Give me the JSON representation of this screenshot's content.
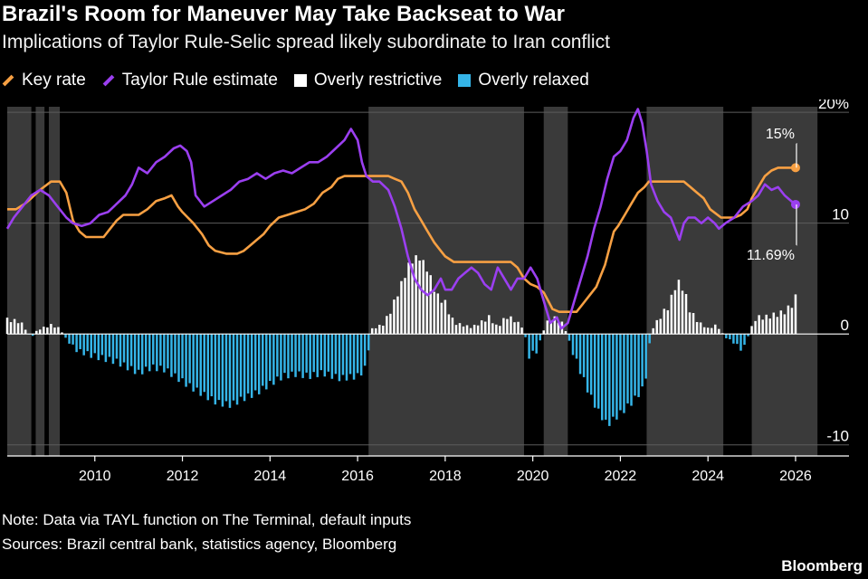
{
  "header": {
    "title": "Brazil's Room for Maneuver May Take Backseat to War",
    "subtitle": "Implications of Taylor Rule-Selic spread likely subordinate to Iran conflict"
  },
  "legend": [
    {
      "label": "Key rate",
      "color": "#f7a043",
      "kind": "line"
    },
    {
      "label": "Taylor Rule estimate",
      "color": "#9b3ff0",
      "kind": "line"
    },
    {
      "label": "Overly restrictive",
      "color": "#ffffff",
      "kind": "box"
    },
    {
      "label": "Overly relaxed",
      "color": "#35b5e8",
      "kind": "box"
    }
  ],
  "footer": {
    "note": "Note: Data via TAYL function on The Terminal, default inputs",
    "sources": "Sources: Brazil central bank, statistics agency, Bloomberg",
    "brand": "Bloomberg"
  },
  "chart_data": {
    "type": "line",
    "title": "Brazil's Room for Maneuver May Take Backseat to War",
    "xlim": [
      2008.0,
      2026.6
    ],
    "ylim": [
      -11,
      20.5
    ],
    "x_ticks": [
      "2010",
      "2012",
      "2014",
      "2016",
      "2018",
      "2020",
      "2022",
      "2024",
      "2026"
    ],
    "y_ticks": [
      {
        "value": 20,
        "label": "20%"
      },
      {
        "value": 10,
        "label": "10"
      },
      {
        "value": 0,
        "label": "0"
      },
      {
        "value": -10,
        "label": "-10"
      }
    ],
    "shaded_periods": [
      [
        2008.0,
        2008.55
      ],
      [
        2008.65,
        2008.85
      ],
      [
        2008.95,
        2009.2
      ],
      [
        2016.25,
        2019.8
      ],
      [
        2020.25,
        2020.8
      ],
      [
        2022.6,
        2024.35
      ],
      [
        2025.0,
        2026.5
      ]
    ],
    "annotations": [
      {
        "label": "15%",
        "x": 2026.0,
        "y": 15.0,
        "series": "Key rate",
        "label_x": 2025.4,
        "label_y": 17.5
      },
      {
        "label": "11.69%",
        "x": 2026.0,
        "y": 11.69,
        "series": "Taylor Rule estimate",
        "label_x": 2025.4,
        "label_y": 7.7
      }
    ],
    "series": [
      {
        "name": "Key rate",
        "color": "#f7a043",
        "points": [
          [
            2008.0,
            11.25
          ],
          [
            2008.2,
            11.25
          ],
          [
            2008.4,
            11.75
          ],
          [
            2008.55,
            12.25
          ],
          [
            2008.75,
            13.0
          ],
          [
            2009.0,
            13.75
          ],
          [
            2009.2,
            13.75
          ],
          [
            2009.35,
            12.75
          ],
          [
            2009.5,
            10.25
          ],
          [
            2009.65,
            9.25
          ],
          [
            2009.8,
            8.75
          ],
          [
            2010.0,
            8.75
          ],
          [
            2010.2,
            8.75
          ],
          [
            2010.35,
            9.5
          ],
          [
            2010.5,
            10.25
          ],
          [
            2010.65,
            10.75
          ],
          [
            2011.0,
            10.75
          ],
          [
            2011.2,
            11.25
          ],
          [
            2011.4,
            12.0
          ],
          [
            2011.6,
            12.25
          ],
          [
            2011.75,
            12.5
          ],
          [
            2011.9,
            11.5
          ],
          [
            2012.0,
            11.0
          ],
          [
            2012.25,
            10.0
          ],
          [
            2012.45,
            9.0
          ],
          [
            2012.6,
            8.0
          ],
          [
            2012.75,
            7.5
          ],
          [
            2013.0,
            7.25
          ],
          [
            2013.25,
            7.25
          ],
          [
            2013.4,
            7.5
          ],
          [
            2013.55,
            8.0
          ],
          [
            2013.7,
            8.5
          ],
          [
            2013.85,
            9.0
          ],
          [
            2014.0,
            9.75
          ],
          [
            2014.2,
            10.5
          ],
          [
            2014.4,
            10.75
          ],
          [
            2014.6,
            11.0
          ],
          [
            2014.8,
            11.25
          ],
          [
            2015.0,
            11.75
          ],
          [
            2015.2,
            12.75
          ],
          [
            2015.4,
            13.25
          ],
          [
            2015.55,
            14.0
          ],
          [
            2015.7,
            14.25
          ],
          [
            2016.0,
            14.25
          ],
          [
            2016.4,
            14.25
          ],
          [
            2016.7,
            14.25
          ],
          [
            2016.85,
            14.0
          ],
          [
            2017.0,
            13.75
          ],
          [
            2017.15,
            12.75
          ],
          [
            2017.3,
            11.25
          ],
          [
            2017.45,
            10.25
          ],
          [
            2017.6,
            9.25
          ],
          [
            2017.75,
            8.25
          ],
          [
            2017.9,
            7.5
          ],
          [
            2018.0,
            7.0
          ],
          [
            2018.2,
            6.5
          ],
          [
            2018.5,
            6.5
          ],
          [
            2019.0,
            6.5
          ],
          [
            2019.5,
            6.5
          ],
          [
            2019.65,
            6.0
          ],
          [
            2019.8,
            5.0
          ],
          [
            2019.95,
            4.5
          ],
          [
            2020.1,
            4.25
          ],
          [
            2020.25,
            3.75
          ],
          [
            2020.35,
            3.0
          ],
          [
            2020.45,
            2.25
          ],
          [
            2020.6,
            2.0
          ],
          [
            2021.0,
            2.0
          ],
          [
            2021.15,
            2.75
          ],
          [
            2021.3,
            3.5
          ],
          [
            2021.45,
            4.25
          ],
          [
            2021.55,
            5.25
          ],
          [
            2021.65,
            6.25
          ],
          [
            2021.75,
            7.75
          ],
          [
            2021.85,
            9.25
          ],
          [
            2021.95,
            9.75
          ],
          [
            2022.1,
            10.75
          ],
          [
            2022.25,
            11.75
          ],
          [
            2022.4,
            12.75
          ],
          [
            2022.55,
            13.25
          ],
          [
            2022.65,
            13.75
          ],
          [
            2023.0,
            13.75
          ],
          [
            2023.45,
            13.75
          ],
          [
            2023.6,
            13.25
          ],
          [
            2023.75,
            12.75
          ],
          [
            2023.9,
            12.25
          ],
          [
            2024.05,
            11.25
          ],
          [
            2024.3,
            10.5
          ],
          [
            2024.6,
            10.5
          ],
          [
            2024.75,
            10.75
          ],
          [
            2024.9,
            11.25
          ],
          [
            2025.0,
            12.25
          ],
          [
            2025.15,
            13.25
          ],
          [
            2025.3,
            14.25
          ],
          [
            2025.45,
            14.75
          ],
          [
            2025.6,
            15.0
          ],
          [
            2026.0,
            15.0
          ]
        ]
      },
      {
        "name": "Taylor Rule estimate",
        "color": "#9b3ff0",
        "points": [
          [
            2008.0,
            9.5
          ],
          [
            2008.15,
            10.5
          ],
          [
            2008.35,
            11.5
          ],
          [
            2008.55,
            12.5
          ],
          [
            2008.75,
            13.0
          ],
          [
            2008.95,
            12.5
          ],
          [
            2009.15,
            11.5
          ],
          [
            2009.35,
            10.5
          ],
          [
            2009.5,
            10.0
          ],
          [
            2009.7,
            9.75
          ],
          [
            2009.9,
            10.0
          ],
          [
            2010.1,
            10.75
          ],
          [
            2010.3,
            11.0
          ],
          [
            2010.5,
            11.75
          ],
          [
            2010.7,
            12.5
          ],
          [
            2010.85,
            13.5
          ],
          [
            2011.0,
            15.0
          ],
          [
            2011.2,
            14.5
          ],
          [
            2011.4,
            15.5
          ],
          [
            2011.6,
            16.0
          ],
          [
            2011.8,
            16.75
          ],
          [
            2011.95,
            17.0
          ],
          [
            2012.1,
            16.5
          ],
          [
            2012.2,
            15.5
          ],
          [
            2012.3,
            12.5
          ],
          [
            2012.5,
            11.5
          ],
          [
            2012.7,
            12.0
          ],
          [
            2012.9,
            12.5
          ],
          [
            2013.1,
            13.0
          ],
          [
            2013.3,
            13.75
          ],
          [
            2013.5,
            14.0
          ],
          [
            2013.7,
            14.5
          ],
          [
            2013.9,
            14.0
          ],
          [
            2014.1,
            14.5
          ],
          [
            2014.3,
            14.75
          ],
          [
            2014.5,
            14.5
          ],
          [
            2014.7,
            15.0
          ],
          [
            2014.9,
            15.5
          ],
          [
            2015.1,
            15.5
          ],
          [
            2015.3,
            16.0
          ],
          [
            2015.5,
            16.75
          ],
          [
            2015.7,
            17.5
          ],
          [
            2015.85,
            18.5
          ],
          [
            2016.0,
            17.5
          ],
          [
            2016.1,
            15.5
          ],
          [
            2016.2,
            14.25
          ],
          [
            2016.35,
            13.75
          ],
          [
            2016.5,
            13.75
          ],
          [
            2016.7,
            13.0
          ],
          [
            2016.85,
            11.5
          ],
          [
            2017.0,
            9.5
          ],
          [
            2017.15,
            7.0
          ],
          [
            2017.3,
            5.0
          ],
          [
            2017.45,
            4.0
          ],
          [
            2017.6,
            3.5
          ],
          [
            2017.75,
            4.0
          ],
          [
            2017.9,
            5.0
          ],
          [
            2018.0,
            4.0
          ],
          [
            2018.15,
            4.0
          ],
          [
            2018.3,
            5.0
          ],
          [
            2018.45,
            5.5
          ],
          [
            2018.6,
            6.0
          ],
          [
            2018.75,
            5.5
          ],
          [
            2018.9,
            4.5
          ],
          [
            2019.05,
            4.0
          ],
          [
            2019.2,
            6.0
          ],
          [
            2019.35,
            5.0
          ],
          [
            2019.5,
            4.0
          ],
          [
            2019.65,
            5.0
          ],
          [
            2019.8,
            5.0
          ],
          [
            2019.95,
            6.0
          ],
          [
            2020.1,
            5.0
          ],
          [
            2020.25,
            3.0
          ],
          [
            2020.4,
            1.0
          ],
          [
            2020.55,
            1.5
          ],
          [
            2020.65,
            0.5
          ],
          [
            2020.8,
            1.0
          ],
          [
            2020.95,
            3.0
          ],
          [
            2021.1,
            5.0
          ],
          [
            2021.25,
            7.0
          ],
          [
            2021.4,
            9.5
          ],
          [
            2021.55,
            11.5
          ],
          [
            2021.7,
            14.0
          ],
          [
            2021.85,
            16.0
          ],
          [
            2022.0,
            16.5
          ],
          [
            2022.15,
            17.5
          ],
          [
            2022.3,
            19.5
          ],
          [
            2022.4,
            20.3
          ],
          [
            2022.5,
            19.0
          ],
          [
            2022.6,
            16.5
          ],
          [
            2022.7,
            13.5
          ],
          [
            2022.85,
            12.0
          ],
          [
            2023.0,
            11.0
          ],
          [
            2023.15,
            10.5
          ],
          [
            2023.25,
            9.5
          ],
          [
            2023.35,
            8.5
          ],
          [
            2023.45,
            10.0
          ],
          [
            2023.55,
            10.5
          ],
          [
            2023.7,
            10.5
          ],
          [
            2023.85,
            10.0
          ],
          [
            2024.0,
            10.5
          ],
          [
            2024.15,
            10.0
          ],
          [
            2024.25,
            9.5
          ],
          [
            2024.4,
            10.0
          ],
          [
            2024.6,
            10.5
          ],
          [
            2024.8,
            11.5
          ],
          [
            2025.0,
            12.0
          ],
          [
            2025.15,
            12.5
          ],
          [
            2025.3,
            13.5
          ],
          [
            2025.45,
            13.0
          ],
          [
            2025.6,
            13.25
          ],
          [
            2025.75,
            12.5
          ],
          [
            2025.9,
            12.0
          ],
          [
            2026.0,
            11.69
          ]
        ]
      }
    ],
    "spread_anchor_points": [
      [
        2008.0,
        1.3
      ],
      [
        2008.3,
        1.1
      ],
      [
        2008.55,
        -0.3
      ],
      [
        2008.7,
        0.4
      ],
      [
        2009.0,
        0.8
      ],
      [
        2009.2,
        0.5
      ],
      [
        2009.35,
        -0.5
      ],
      [
        2009.6,
        -1.5
      ],
      [
        2010.0,
        -2.0
      ],
      [
        2010.5,
        -2.5
      ],
      [
        2011.0,
        -3.5
      ],
      [
        2011.3,
        -3.0
      ],
      [
        2011.6,
        -3.2
      ],
      [
        2011.9,
        -4.0
      ],
      [
        2012.2,
        -4.8
      ],
      [
        2012.5,
        -5.5
      ],
      [
        2012.8,
        -6.2
      ],
      [
        2013.1,
        -6.4
      ],
      [
        2013.4,
        -5.8
      ],
      [
        2013.7,
        -5.3
      ],
      [
        2014.0,
        -4.5
      ],
      [
        2014.3,
        -3.8
      ],
      [
        2014.6,
        -3.6
      ],
      [
        2014.9,
        -3.8
      ],
      [
        2015.2,
        -3.5
      ],
      [
        2015.6,
        -4.0
      ],
      [
        2016.0,
        -3.8
      ],
      [
        2016.2,
        -3.0
      ],
      [
        2016.3,
        0.4
      ],
      [
        2016.6,
        0.9
      ],
      [
        2016.8,
        2.5
      ],
      [
        2017.0,
        4.5
      ],
      [
        2017.2,
        6.5
      ],
      [
        2017.4,
        7.0
      ],
      [
        2017.6,
        5.8
      ],
      [
        2017.8,
        3.5
      ],
      [
        2018.0,
        2.8
      ],
      [
        2018.2,
        1.0
      ],
      [
        2018.4,
        0.8
      ],
      [
        2018.6,
        0.6
      ],
      [
        2018.8,
        1.0
      ],
      [
        2019.0,
        1.5
      ],
      [
        2019.2,
        0.6
      ],
      [
        2019.4,
        1.6
      ],
      [
        2019.6,
        1.2
      ],
      [
        2019.8,
        0.5
      ],
      [
        2019.9,
        -2.0
      ],
      [
        2020.1,
        -1.5
      ],
      [
        2020.3,
        1.0
      ],
      [
        2020.5,
        1.4
      ],
      [
        2020.7,
        0.9
      ],
      [
        2020.9,
        -1.5
      ],
      [
        2021.1,
        -3.5
      ],
      [
        2021.3,
        -5.5
      ],
      [
        2021.5,
        -7.0
      ],
      [
        2021.7,
        -8.2
      ],
      [
        2021.9,
        -7.5
      ],
      [
        2022.1,
        -6.8
      ],
      [
        2022.3,
        -6.0
      ],
      [
        2022.5,
        -5.0
      ],
      [
        2022.6,
        -3.5
      ],
      [
        2022.7,
        0.3
      ],
      [
        2022.9,
        1.5
      ],
      [
        2023.1,
        2.5
      ],
      [
        2023.3,
        4.8
      ],
      [
        2023.45,
        4.0
      ],
      [
        2023.6,
        2.0
      ],
      [
        2023.8,
        1.0
      ],
      [
        2024.0,
        0.5
      ],
      [
        2024.2,
        0.8
      ],
      [
        2024.4,
        -0.3
      ],
      [
        2024.6,
        -0.8
      ],
      [
        2024.8,
        -1.5
      ],
      [
        2024.95,
        0.2
      ],
      [
        2025.1,
        1.5
      ],
      [
        2025.3,
        1.5
      ],
      [
        2025.5,
        1.7
      ],
      [
        2025.7,
        1.9
      ],
      [
        2025.9,
        2.5
      ],
      [
        2026.0,
        3.3
      ]
    ]
  }
}
